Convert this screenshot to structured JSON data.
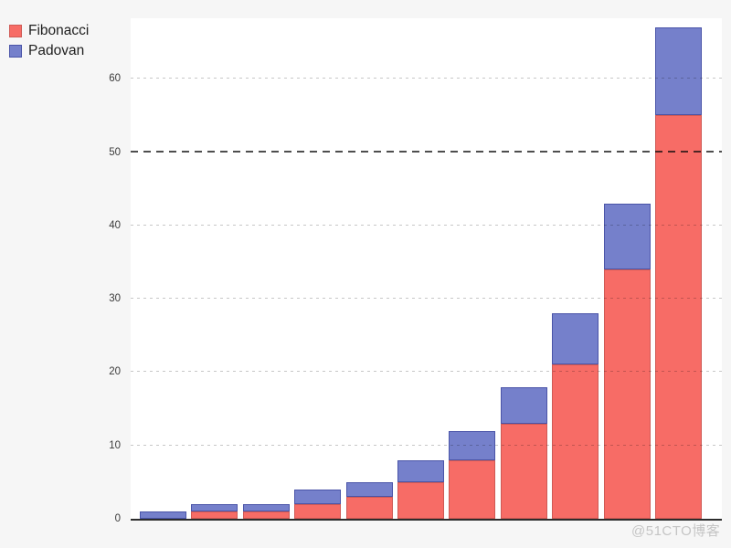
{
  "legend": {
    "items": [
      {
        "label": "Fibonacci",
        "fill": "#f76c66",
        "stroke": "#cf5a55"
      },
      {
        "label": "Padovan",
        "fill": "#7580cb",
        "stroke": "#4a54a8"
      }
    ],
    "position": "top-left"
  },
  "chart_data": {
    "type": "bar",
    "stacked": true,
    "title": "",
    "xlabel": "",
    "ylabel": "",
    "x_tick_labels": [],
    "series": [
      {
        "name": "Fibonacci",
        "values": [
          0,
          1,
          1,
          2,
          3,
          5,
          8,
          13,
          21,
          34,
          55
        ],
        "fill": "#f76c66",
        "stroke": "#cf5a55",
        "stack_position": "bottom"
      },
      {
        "name": "Padovan",
        "values": [
          1,
          1,
          1,
          2,
          2,
          3,
          4,
          5,
          7,
          9,
          12
        ],
        "fill": "#7580cb",
        "stroke": "#4a54a8",
        "stack_position": "top"
      }
    ],
    "stack_totals": [
      1,
      2,
      2,
      4,
      5,
      8,
      12,
      18,
      28,
      43,
      67
    ],
    "y_ticks": [
      0,
      10,
      20,
      30,
      40,
      50,
      60
    ],
    "ylim": [
      0,
      68.2
    ],
    "grid": {
      "horizontal_dashed": true,
      "color": "#c9c9c9",
      "vertical": false
    },
    "reference_line": {
      "y": 50,
      "style": "dashed",
      "color": "#3a3a3a"
    },
    "legend_position": "top-left",
    "axis_line_color": "#2d2d2d"
  },
  "colors": {
    "page_background": "#f6f6f6",
    "plot_background": "#ffffff",
    "tick_label": "#3a3a3a"
  },
  "watermark": "@51CTO博客"
}
